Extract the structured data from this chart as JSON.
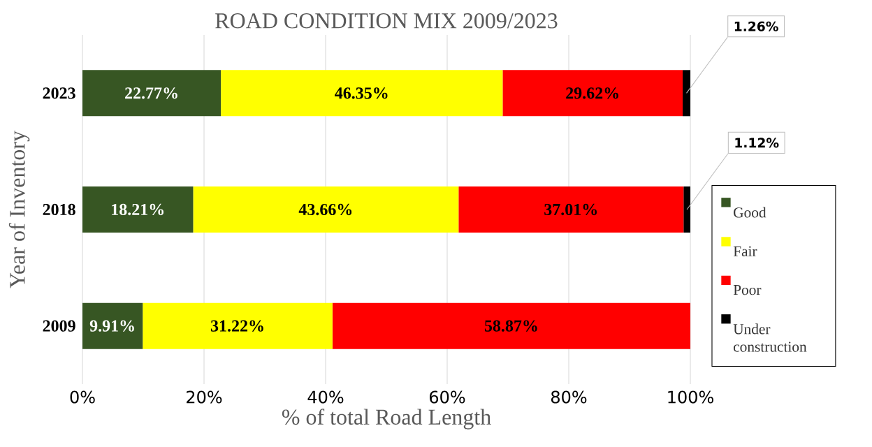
{
  "chart_data": {
    "type": "bar",
    "orientation": "horizontal",
    "stacked": true,
    "title": "ROAD CONDITION MIX 2009/2023",
    "xlabel": "% of total Road Length",
    "ylabel": "Year of Inventory",
    "categories": [
      "2023",
      "2018",
      "2009"
    ],
    "series": [
      {
        "name": "Good",
        "color": "#375623",
        "values": [
          22.77,
          18.21,
          9.91
        ],
        "value_labels": [
          "22.77%",
          "18.21%",
          "9.91%"
        ]
      },
      {
        "name": "Fair",
        "color": "#ffff00",
        "values": [
          46.35,
          43.66,
          31.22
        ],
        "value_labels": [
          "46.35%",
          "43.66%",
          "31.22%"
        ]
      },
      {
        "name": "Poor",
        "color": "#ff0000",
        "values": [
          29.62,
          37.01,
          58.87
        ],
        "value_labels": [
          "29.62%",
          "37.01%",
          "58.87%"
        ]
      },
      {
        "name": "Under construction",
        "color": "#000000",
        "values": [
          1.26,
          1.12,
          null
        ],
        "value_labels": [
          "1.26%",
          "1.12%",
          null
        ]
      }
    ],
    "xlim": [
      0,
      100
    ],
    "xticks": [
      {
        "value": 0,
        "label": "0%"
      },
      {
        "value": 20,
        "label": "20%"
      },
      {
        "value": 40,
        "label": "40%"
      },
      {
        "value": 60,
        "label": "60%"
      },
      {
        "value": 80,
        "label": "80%"
      },
      {
        "value": 100,
        "label": "100%"
      }
    ],
    "grid": "x",
    "legend": "right"
  }
}
